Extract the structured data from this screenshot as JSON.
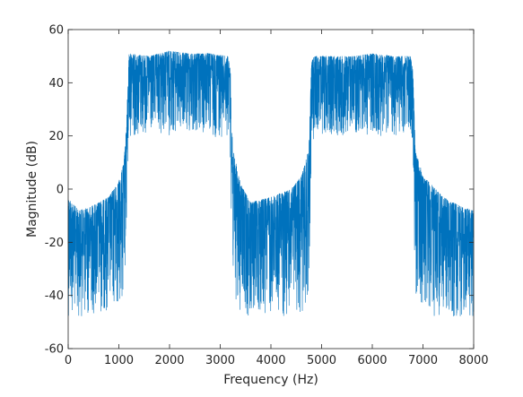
{
  "chart_data": {
    "type": "line",
    "title": "",
    "xlabel": "Frequency (Hz)",
    "ylabel": "Magnitude (dB)",
    "xlim": [
      0,
      8000
    ],
    "ylim": [
      -60,
      60
    ],
    "x_ticks": [
      0,
      1000,
      2000,
      3000,
      4000,
      5000,
      6000,
      7000,
      8000
    ],
    "y_ticks": [
      -60,
      -40,
      -20,
      0,
      20,
      40,
      60
    ],
    "x_tick_labels": [
      "0",
      "1000",
      "2000",
      "3000",
      "4000",
      "5000",
      "6000",
      "7000",
      "8000"
    ],
    "y_tick_labels": [
      "-60",
      "-40",
      "-20",
      "0",
      "20",
      "40",
      "60"
    ],
    "grid": false,
    "box": true,
    "line_color": "#0072BD",
    "series": [
      {
        "note_profile": "noisy magnitude spectrum; upper envelope shown below, lower values dip near -48 dB in stopbands and ~20 dB in passbands",
        "x": [
          0,
          200,
          400,
          600,
          800,
          1000,
          1100,
          1150,
          1200,
          1600,
          2000,
          2400,
          2800,
          3150,
          3200,
          3250,
          3400,
          3600,
          4000,
          4400,
          4600,
          4750,
          4800,
          4850,
          5200,
          5600,
          6000,
          6400,
          6750,
          6800,
          6850,
          7000,
          7400,
          7800,
          8000
        ],
        "upper": [
          -3,
          -8,
          -7,
          -5,
          -3,
          3,
          10,
          25,
          51,
          50,
          52,
          51,
          51,
          50,
          45,
          15,
          2,
          -5,
          -3,
          0,
          5,
          15,
          48,
          50,
          50,
          50,
          51,
          50,
          50,
          45,
          15,
          5,
          -3,
          -7,
          -8
        ],
        "lower": [
          -48,
          -48,
          -48,
          -47,
          -46,
          -46,
          -44,
          -20,
          20,
          19,
          20,
          20,
          19,
          20,
          10,
          -40,
          -48,
          -48,
          -48,
          -48,
          -47,
          -40,
          15,
          20,
          20,
          20,
          20,
          20,
          20,
          10,
          -40,
          -48,
          -48,
          -48,
          -48
        ]
      }
    ]
  }
}
